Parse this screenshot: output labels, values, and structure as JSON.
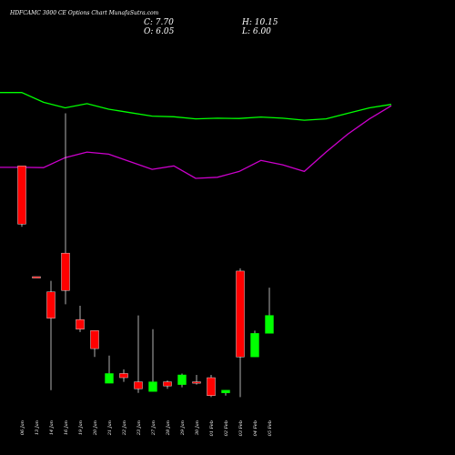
{
  "chart_data": {
    "type": "candlestick",
    "title": "HDFCAMC 3000 CE Options Chart MunafaSutra.com",
    "readout": {
      "close": "C: 7.70",
      "open": "O: 6.05",
      "high": "H: 10.15",
      "low": "L: 6.00"
    },
    "dates": [
      "06 Jan",
      "13 Jan",
      "14 Jan",
      "16 Jan",
      "19 Jan",
      "20 Jan",
      "21 Jan",
      "22 Jan",
      "23 Jan",
      "27 Jan",
      "28 Jan",
      "29 Jan",
      "30 Jan",
      "01 Feb",
      "02 Feb",
      "03 Feb",
      "04 Feb",
      "05 Feb"
    ],
    "candles": [
      {
        "o": 22.6,
        "h": 22.6,
        "l": 18.2,
        "c": 18.4
      },
      {
        "o": 14.6,
        "h": 14.6,
        "l": 14.6,
        "c": 14.5
      },
      {
        "o": 13.5,
        "h": 14.3,
        "l": 6.4,
        "c": 11.6
      },
      {
        "o": 16.3,
        "h": 26.4,
        "l": 12.6,
        "c": 13.6
      },
      {
        "o": 11.5,
        "h": 12.5,
        "l": 10.6,
        "c": 10.8
      },
      {
        "o": 10.7,
        "h": 10.7,
        "l": 8.8,
        "c": 9.4
      },
      {
        "o": 6.9,
        "h": 8.9,
        "l": 6.9,
        "c": 7.6
      },
      {
        "o": 7.6,
        "h": 7.9,
        "l": 7.0,
        "c": 7.3
      },
      {
        "o": 7.0,
        "h": 11.8,
        "l": 6.2,
        "c": 6.5
      },
      {
        "o": 6.3,
        "h": 10.8,
        "l": 6.3,
        "c": 7.0
      },
      {
        "o": 7.0,
        "h": 7.1,
        "l": 6.5,
        "c": 6.7
      },
      {
        "o": 6.8,
        "h": 7.6,
        "l": 6.6,
        "c": 7.5
      },
      {
        "o": 7.0,
        "h": 7.5,
        "l": 6.8,
        "c": 6.9
      },
      {
        "o": 7.3,
        "h": 7.5,
        "l": 5.9,
        "c": 6.0
      },
      {
        "o": 6.2,
        "h": 6.4,
        "l": 6.0,
        "c": 6.4
      },
      {
        "o": 15.0,
        "h": 15.2,
        "l": 5.9,
        "c": 8.8
      },
      {
        "o": 8.8,
        "h": 10.7,
        "l": 8.8,
        "c": 10.5
      },
      {
        "o": 10.5,
        "h": 13.8,
        "l": 10.5,
        "c": 11.8
      }
    ],
    "ma_green": [
      27.9,
      27.9,
      27.2,
      26.8,
      27.1,
      26.7,
      26.45,
      26.2,
      26.15,
      26.0,
      26.05,
      26.03,
      26.13,
      26.05,
      25.9,
      26.0,
      26.4,
      26.8,
      27.05
    ],
    "ma_magenta": [
      22.5,
      22.5,
      22.48,
      23.2,
      23.6,
      23.45,
      22.9,
      22.35,
      22.6,
      21.7,
      21.78,
      22.2,
      23.0,
      22.68,
      22.2,
      23.6,
      24.9,
      26.0,
      26.95
    ],
    "ylim": [
      5.0,
      29.0
    ],
    "colors": {
      "up": "#00ff00",
      "down": "#ff0000",
      "ma_fast": "#00ff00",
      "ma_slow": "#cc00cc",
      "background": "#000000"
    }
  }
}
